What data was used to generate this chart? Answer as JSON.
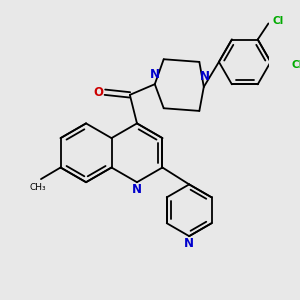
{
  "bg_color": "#e8e8e8",
  "bond_color": "#000000",
  "n_color": "#0000cc",
  "o_color": "#cc0000",
  "cl_color": "#00aa00",
  "lw": 1.3,
  "xlim": [
    0.0,
    3.0
  ],
  "ylim": [
    0.2,
    3.2
  ]
}
